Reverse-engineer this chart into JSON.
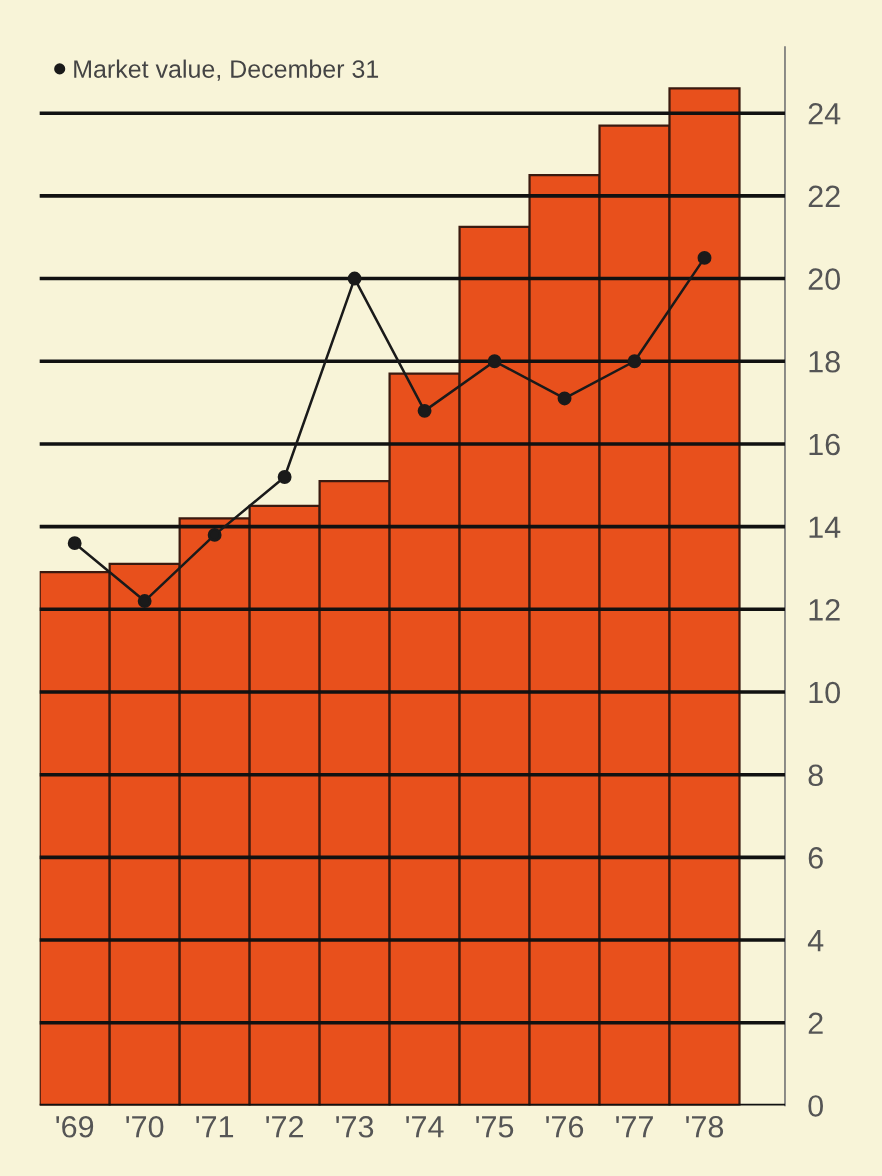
{
  "chart_data": {
    "type": "bar",
    "categories": [
      "'69",
      "'70",
      "'71",
      "'72",
      "'73",
      "'74",
      "'75",
      "'76",
      "'77",
      "'78"
    ],
    "series": [
      {
        "color": "#e8501c",
        "values": [
          12.9,
          13.1,
          14.2,
          14.5,
          15.1,
          17.7,
          21.25,
          22.5,
          23.7,
          24.6
        ]
      },
      {
        "type": "line",
        "name": "Market value, December 31",
        "color": "#1a1a1a",
        "marker": "circle",
        "line_style": "solid",
        "values": [
          13.6,
          12.2,
          13.8,
          15.2,
          20.0,
          16.8,
          18.0,
          17.1,
          18.0,
          20.5
        ]
      }
    ],
    "ylim": [
      0,
      25.6
    ],
    "yticks": [
      0,
      2,
      4,
      6,
      8,
      10,
      12,
      14,
      16,
      18,
      20,
      22,
      24
    ],
    "grid": "y",
    "legend": "top left"
  }
}
